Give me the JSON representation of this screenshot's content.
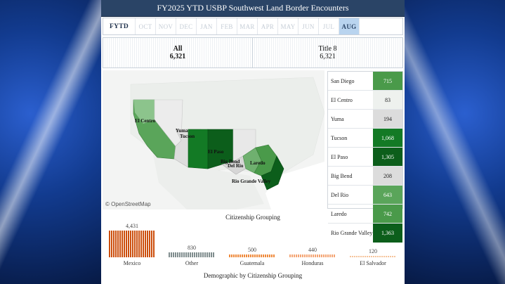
{
  "header": {
    "title": "FY2025 YTD USBP Southwest Land Border Encounters"
  },
  "tabs": [
    {
      "label": "FYTD",
      "state": "selected-total"
    },
    {
      "label": "OCT"
    },
    {
      "label": "NOV"
    },
    {
      "label": "DEC"
    },
    {
      "label": "JAN"
    },
    {
      "label": "FEB"
    },
    {
      "label": "MAR"
    },
    {
      "label": "APR"
    },
    {
      "label": "MAY"
    },
    {
      "label": "JUN"
    },
    {
      "label": "JUL"
    },
    {
      "label": "AUG",
      "state": "active"
    }
  ],
  "totals": {
    "all_label": "All",
    "all_value": "6,321",
    "title8_label": "Title 8",
    "title8_value": "6,321"
  },
  "map": {
    "attribution": "© OpenStreetMap",
    "labels": {
      "el_centro": "El Centro",
      "yuma": "Yuma",
      "tucson": "Tucson",
      "el_paso": "El Paso",
      "big_bend": "Big Bend",
      "del_rio": "Del Rio",
      "laredo": "Laredo",
      "rio_grande_valley": "Rio Grande Valley"
    }
  },
  "sectors": [
    {
      "name": "San Diego",
      "value": "715",
      "color": "#4a9a4a",
      "text_color": "#ffffff"
    },
    {
      "name": "El Centro",
      "value": "83",
      "color": "#eef1ee",
      "text_color": "#222222"
    },
    {
      "name": "Yuma",
      "value": "194",
      "color": "#dcdcdc",
      "text_color": "#222222"
    },
    {
      "name": "Tucson",
      "value": "1,068",
      "color": "#137a25",
      "text_color": "#ffffff"
    },
    {
      "name": "El Paso",
      "value": "1,305",
      "color": "#0c5e1b",
      "text_color": "#ffffff"
    },
    {
      "name": "Big Bend",
      "value": "208",
      "color": "#dcdcdc",
      "text_color": "#222222"
    },
    {
      "name": "Del Rio",
      "value": "643",
      "color": "#5aa55a",
      "text_color": "#ffffff"
    },
    {
      "name": "Laredo",
      "value": "742",
      "color": "#4a9a4a",
      "text_color": "#ffffff"
    },
    {
      "name": "Rio Grande Valley",
      "value": "1,363",
      "color": "#0c5e1b",
      "text_color": "#ffffff"
    }
  ],
  "citizenship": {
    "title": "Citizenship Grouping",
    "bar_color_primary": "#d35400",
    "bar_color_secondary": "#7f8c8d",
    "groups": [
      {
        "name": "Mexico",
        "value": 4431,
        "label": "4,431",
        "color": "#cc4e0c"
      },
      {
        "name": "Other",
        "value": 830,
        "label": "830",
        "color": "#7f8c8d"
      },
      {
        "name": "Guatemala",
        "value": 500,
        "label": "500",
        "color": "#ef8a3c"
      },
      {
        "name": "Honduras",
        "value": 440,
        "label": "440",
        "color": "#f4a574"
      },
      {
        "name": "El Salvador",
        "value": 120,
        "label": "120",
        "color": "#f6c39a"
      }
    ]
  },
  "footer": {
    "title": "Demographic by Citizenship Grouping"
  }
}
